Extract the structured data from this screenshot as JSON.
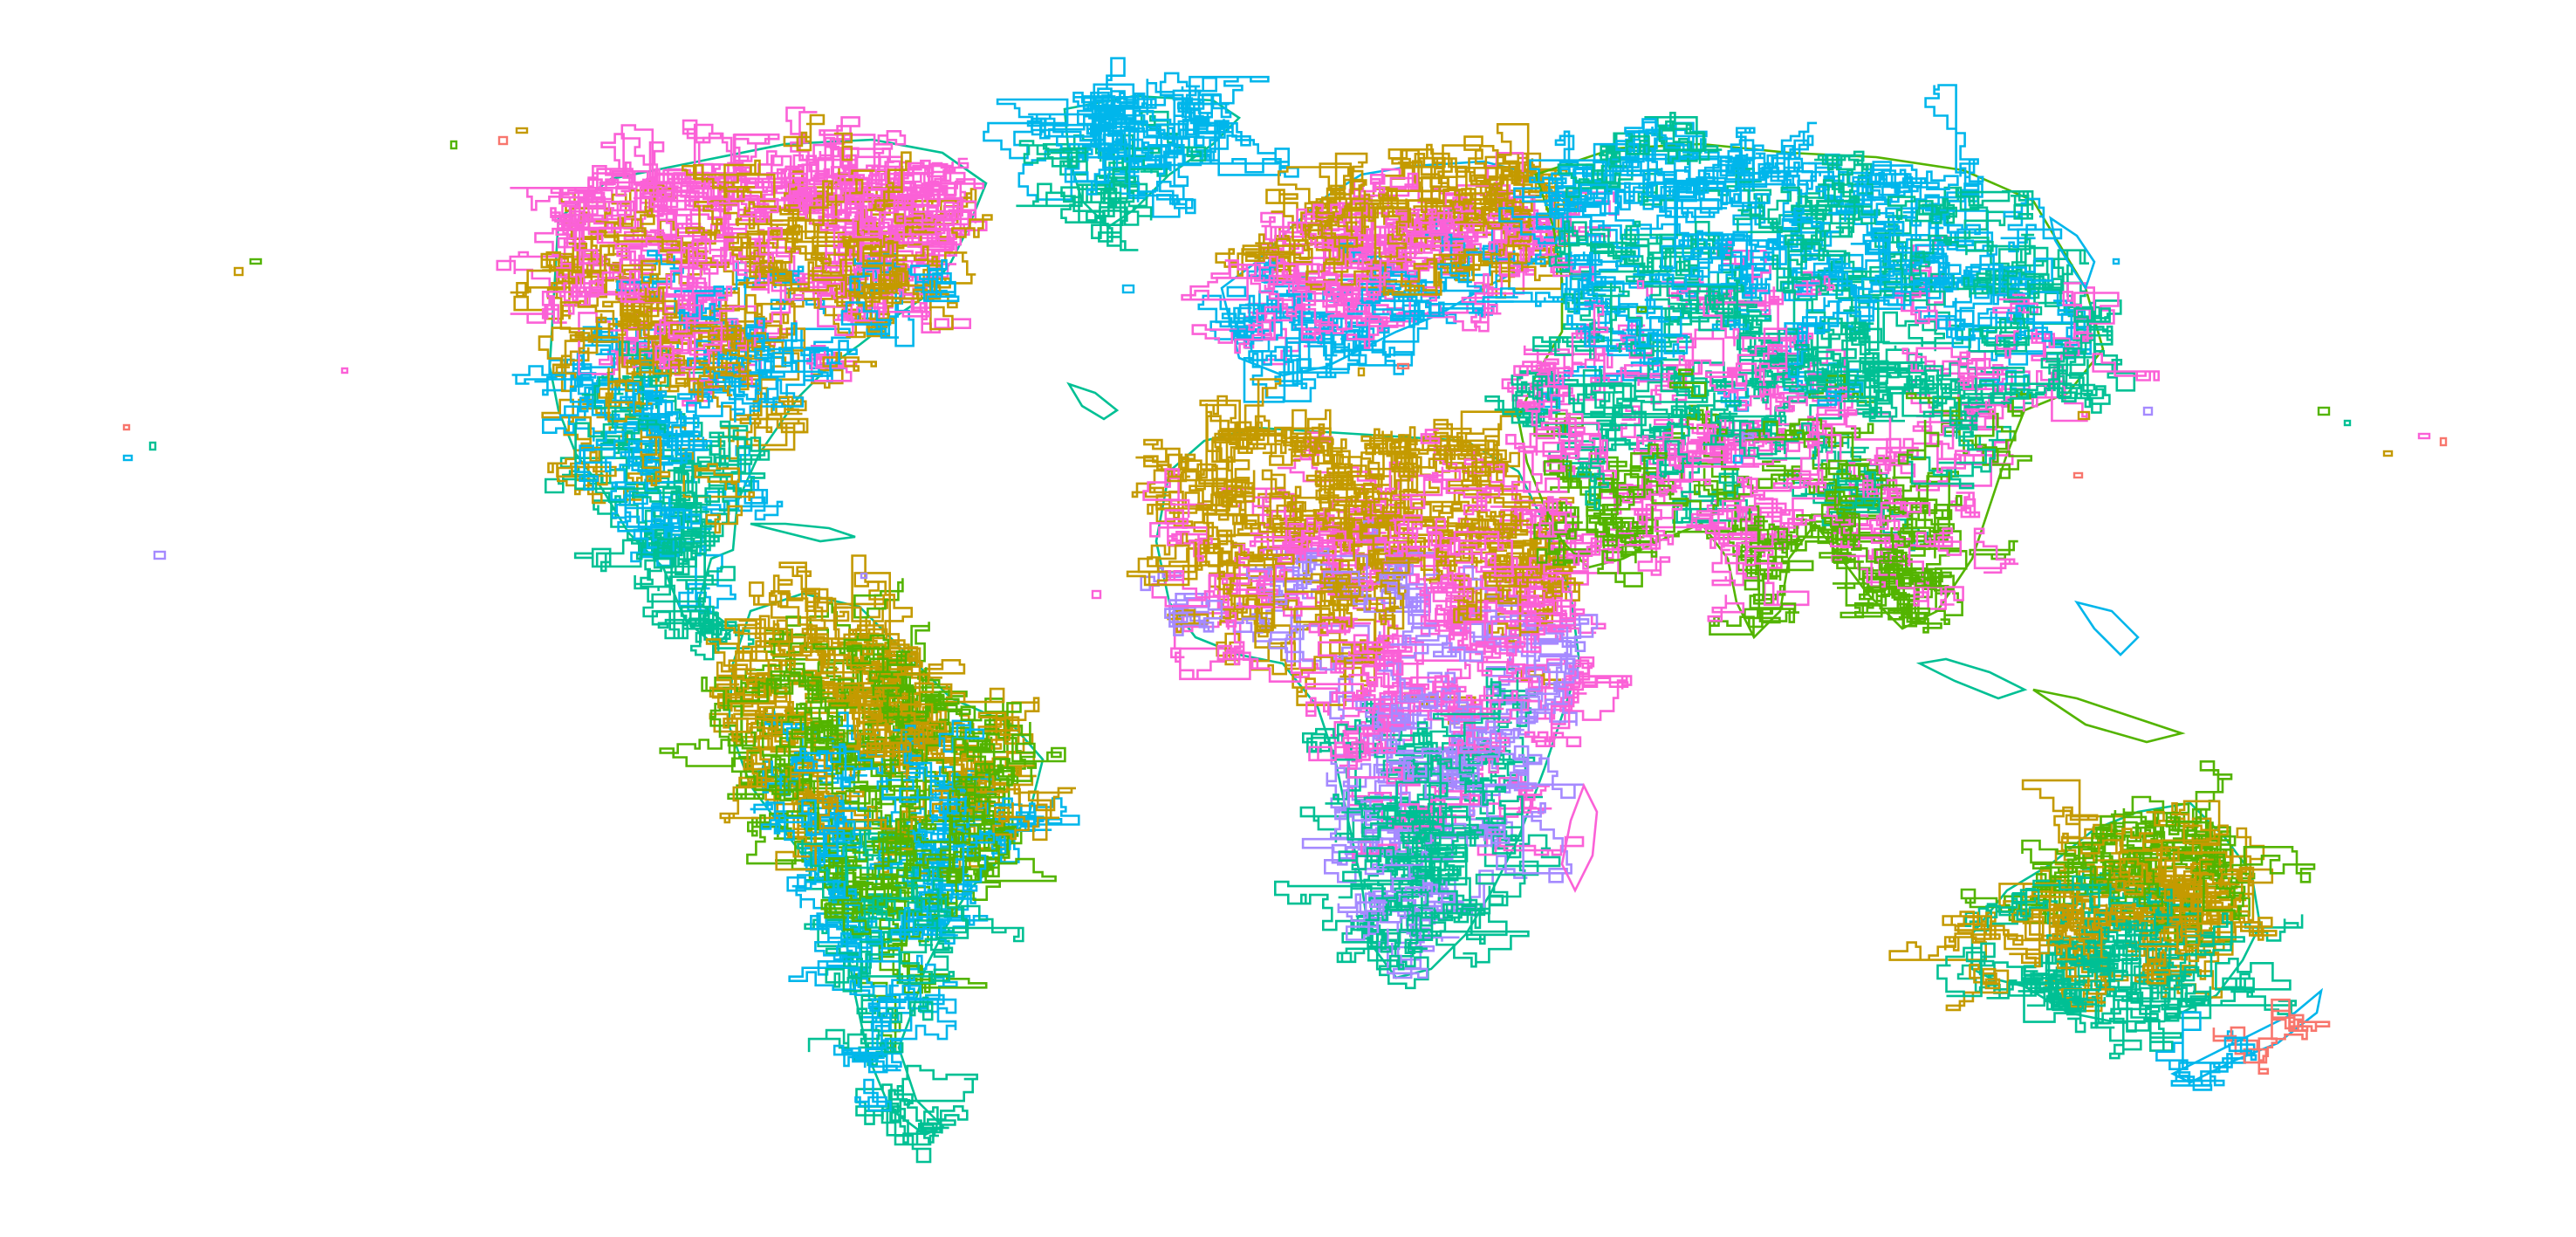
{
  "map": {
    "kind": "world-climate-zone-outlines",
    "projection": "equirectangular",
    "background": "#ffffff",
    "title": "",
    "legend": "none",
    "palette": {
      "zone_1": "#F8766D",
      "zone_2": "#C49A00",
      "zone_3": "#53B400",
      "zone_4": "#00C094",
      "zone_5": "#00B6EB",
      "zone_6": "#A58AFF",
      "zone_7": "#FB61D7"
    },
    "landmasses": [
      {
        "name": "north-america",
        "dominant_zones": [
          "zone_7",
          "zone_2",
          "zone_5",
          "zone_4"
        ]
      },
      {
        "name": "greenland",
        "dominant_zones": [
          "zone_5",
          "zone_4"
        ]
      },
      {
        "name": "south-america",
        "dominant_zones": [
          "zone_2",
          "zone_3",
          "zone_5",
          "zone_4"
        ]
      },
      {
        "name": "europe",
        "dominant_zones": [
          "zone_2",
          "zone_7",
          "zone_5"
        ]
      },
      {
        "name": "africa",
        "dominant_zones": [
          "zone_2",
          "zone_7",
          "zone_6",
          "zone_4"
        ]
      },
      {
        "name": "asia",
        "dominant_zones": [
          "zone_5",
          "zone_4",
          "zone_7",
          "zone_3"
        ]
      },
      {
        "name": "australia",
        "dominant_zones": [
          "zone_3",
          "zone_2",
          "zone_4"
        ]
      },
      {
        "name": "new-zealand",
        "dominant_zones": [
          "zone_1",
          "zone_5"
        ]
      }
    ]
  }
}
